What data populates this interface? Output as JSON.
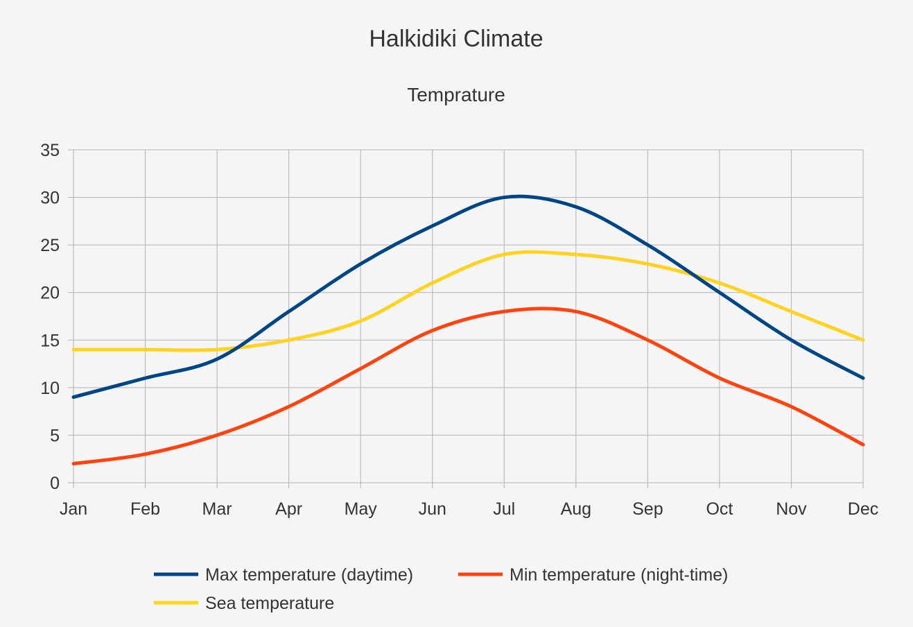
{
  "chart_data": {
    "type": "line",
    "title": "Halkidiki Climate",
    "subtitle": "Temprature",
    "xlabel": "",
    "ylabel": "",
    "categories": [
      "Jan",
      "Feb",
      "Mar",
      "Apr",
      "May",
      "Jun",
      "Jul",
      "Aug",
      "Sep",
      "Oct",
      "Nov",
      "Dec"
    ],
    "ylim": [
      0,
      35
    ],
    "yticks": [
      0,
      5,
      10,
      15,
      20,
      25,
      30,
      35
    ],
    "grid": true,
    "legend_position": "bottom",
    "series": [
      {
        "name": "Max temperature (daytime)",
        "color": "#004586",
        "values": [
          9,
          11,
          13,
          18,
          23,
          27,
          30,
          29,
          25,
          20,
          15,
          11
        ]
      },
      {
        "name": "Min temperature (night-time)",
        "color": "#ff420e",
        "values": [
          2,
          3,
          5,
          8,
          12,
          16,
          18,
          18,
          15,
          11,
          8,
          4
        ]
      },
      {
        "name": "Sea temperature",
        "color": "#ffd320",
        "values": [
          14,
          14,
          14,
          15,
          17,
          21,
          24,
          24,
          23,
          21,
          18,
          15
        ]
      }
    ]
  }
}
